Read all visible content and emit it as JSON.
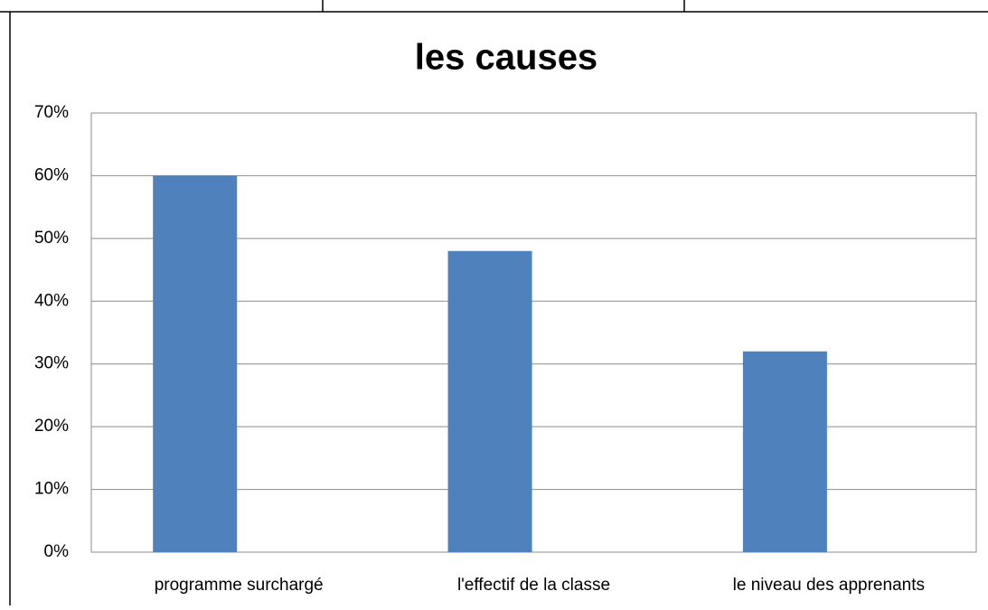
{
  "chart_data": {
    "type": "bar",
    "title": "les causes",
    "categories": [
      "programme surchargé",
      "l'effectif de la classe",
      "le niveau des apprenants"
    ],
    "values": [
      60,
      48,
      32
    ],
    "color": "#4f81bd",
    "ylim": [
      0,
      70
    ],
    "yticks": [
      {
        "value": 0,
        "label": "0%"
      },
      {
        "value": 10,
        "label": "10%"
      },
      {
        "value": 20,
        "label": "20%"
      },
      {
        "value": 30,
        "label": "30%"
      },
      {
        "value": 40,
        "label": "40%"
      },
      {
        "value": 50,
        "label": "50%"
      },
      {
        "value": 60,
        "label": "60%"
      },
      {
        "value": 70,
        "label": "70%"
      }
    ],
    "grid": true
  }
}
